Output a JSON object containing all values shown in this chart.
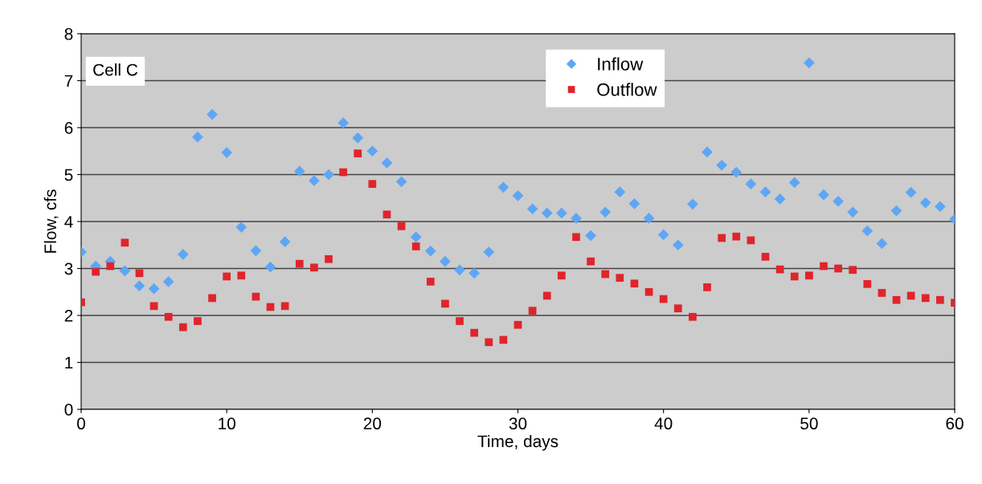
{
  "chart_data": {
    "type": "scatter",
    "xlabel": "Time, days",
    "ylabel": "Flow, cfs",
    "annotations": [
      "Cell C"
    ],
    "x": [
      0,
      1,
      2,
      3,
      4,
      5,
      6,
      7,
      8,
      9,
      10,
      11,
      12,
      13,
      14,
      15,
      16,
      17,
      18,
      19,
      20,
      21,
      22,
      23,
      24,
      25,
      26,
      27,
      28,
      29,
      30,
      31,
      32,
      33,
      34,
      35,
      36,
      37,
      38,
      39,
      40,
      41,
      42,
      43,
      44,
      45,
      46,
      47,
      48,
      49,
      50,
      51,
      52,
      53,
      54,
      55,
      56,
      57,
      58,
      59,
      60
    ],
    "series": [
      {
        "name": "Inflow",
        "color": "#5ea6f5",
        "marker": "diamond",
        "values": [
          3.35,
          3.05,
          3.15,
          2.95,
          2.63,
          2.57,
          2.72,
          3.3,
          5.8,
          6.28,
          5.47,
          3.88,
          3.38,
          3.03,
          3.57,
          5.07,
          4.87,
          5.0,
          6.1,
          5.78,
          5.5,
          5.25,
          4.85,
          3.67,
          3.37,
          3.15,
          2.97,
          2.9,
          3.35,
          4.73,
          4.55,
          4.27,
          4.18,
          4.18,
          4.07,
          3.7,
          4.2,
          4.63,
          4.38,
          4.07,
          3.72,
          3.5,
          4.37,
          5.48,
          5.2,
          5.05,
          4.8,
          4.63,
          4.48,
          4.83,
          7.38,
          4.57,
          4.43,
          4.2,
          3.8,
          3.53,
          4.23,
          4.62,
          4.4,
          4.32,
          4.05
        ]
      },
      {
        "name": "Outflow",
        "color": "#e0242c",
        "marker": "square",
        "values": [
          2.28,
          2.93,
          3.05,
          3.55,
          2.9,
          2.2,
          1.97,
          1.75,
          1.88,
          2.37,
          2.83,
          2.85,
          2.4,
          2.18,
          2.2,
          3.1,
          3.02,
          3.2,
          5.05,
          5.45,
          4.8,
          4.15,
          3.9,
          3.47,
          2.72,
          2.25,
          1.88,
          1.63,
          1.43,
          1.48,
          1.8,
          2.1,
          2.42,
          2.85,
          3.67,
          3.15,
          2.88,
          2.8,
          2.68,
          2.5,
          2.35,
          2.15,
          1.97,
          2.6,
          3.65,
          3.68,
          3.6,
          3.25,
          2.98,
          2.83,
          2.85,
          3.05,
          3.0,
          2.97,
          2.67,
          2.48,
          2.33,
          2.42,
          2.37,
          2.33,
          2.27
        ]
      }
    ],
    "xlim": [
      0,
      60
    ],
    "xticks": [
      0,
      10,
      20,
      30,
      40,
      50,
      60
    ],
    "ylim": [
      0,
      8
    ],
    "yticks": [
      0,
      1,
      2,
      3,
      4,
      5,
      6,
      7,
      8
    ],
    "grid": "y",
    "legend": "top"
  }
}
